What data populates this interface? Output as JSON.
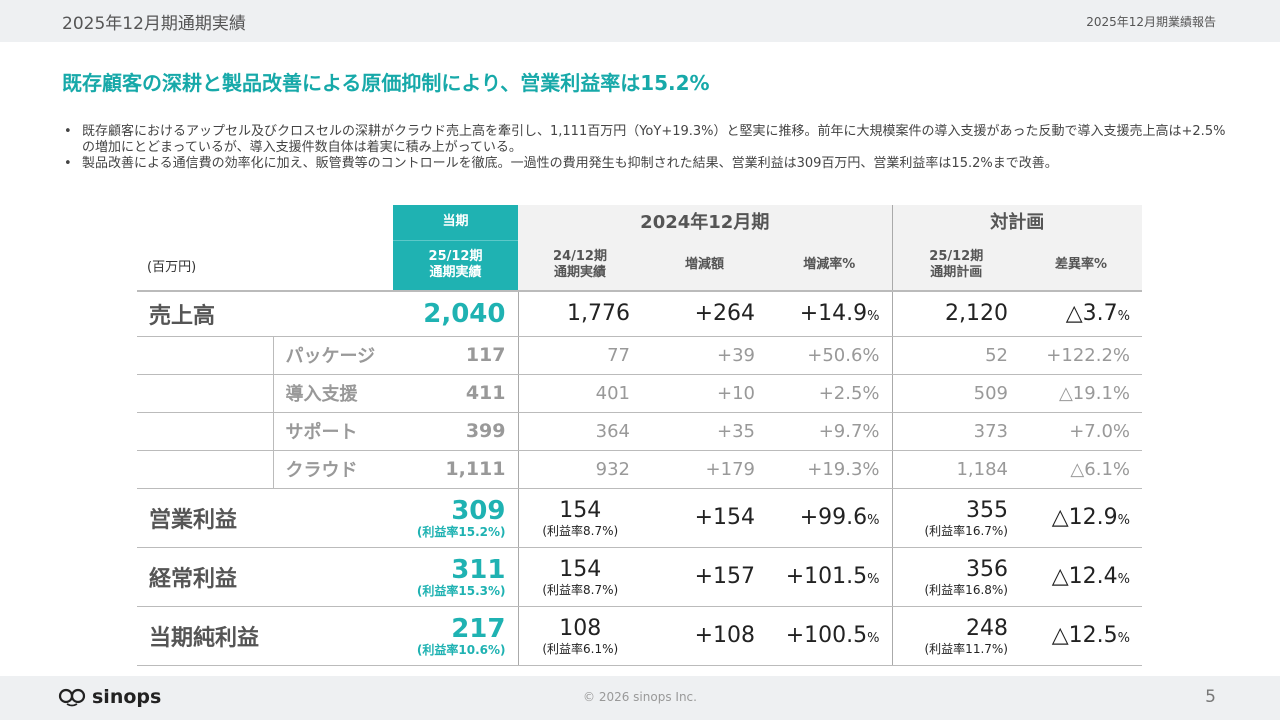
{
  "header": {
    "title": "2025年12月期通期実績",
    "report": "2025年12月期業績報告"
  },
  "headline": "既存顧客の深耕と製品改善による原価抑制により、営業利益率は15.2%",
  "bullets": [
    "既存顧客におけるアップセル及びクロスセルの深耕がクラウド売上高を牽引し、1,111百万円（YoY+19.3%）と堅実に推移。前年に大規模案件の導入支援があった反動で導入支援売上高は+2.5%の増加にとどまっているが、導入支援件数自体は着実に積み上がっている。",
    "製品改善による通信費の効率化に加え、販管費等のコントロールを徹底。一過性の費用発生も抑制された結果、営業利益は309百万円、営業利益率は15.2%まで改善。"
  ],
  "table": {
    "unit": "(百万円)",
    "group_current": "当期",
    "group_prev": "2024年12月期",
    "group_plan": "対計画",
    "cols": {
      "cur1": "25/12期",
      "cur2": "通期実績",
      "prev1": "24/12期",
      "prev2": "通期実績",
      "diff": "増減額",
      "rate": "増減率%",
      "plan1": "25/12期",
      "plan2": "通期計画",
      "var": "差異率%"
    },
    "sales": {
      "label": "売上高",
      "cur": "2,040",
      "prev": "1,776",
      "diff": "+264",
      "rate": "+14.9",
      "plan": "2,120",
      "var": "△3.7"
    },
    "subs": [
      {
        "label": "パッケージ",
        "cur": "117",
        "prev": "77",
        "diff": "+39",
        "rate": "+50.6%",
        "plan": "52",
        "var": "+122.2%"
      },
      {
        "label": "導入支援",
        "cur": "411",
        "prev": "401",
        "diff": "+10",
        "rate": "+2.5%",
        "plan": "509",
        "var": "△19.1%"
      },
      {
        "label": "サポート",
        "cur": "399",
        "prev": "364",
        "diff": "+35",
        "rate": "+9.7%",
        "plan": "373",
        "var": "+7.0%"
      },
      {
        "label": "クラウド",
        "cur": "1,111",
        "prev": "932",
        "diff": "+179",
        "rate": "+19.3%",
        "plan": "1,184",
        "var": "△6.1%"
      }
    ],
    "profits": [
      {
        "label": "営業利益",
        "cur": "309",
        "cur_m": "(利益率15.2%)",
        "prev": "154",
        "prev_m": "(利益率8.7%)",
        "diff": "+154",
        "rate": "+99.6",
        "plan": "355",
        "plan_m": "(利益率16.7%)",
        "var": "△12.9"
      },
      {
        "label": "経常利益",
        "cur": "311",
        "cur_m": "(利益率15.3%)",
        "prev": "154",
        "prev_m": "(利益率8.7%)",
        "diff": "+157",
        "rate": "+101.5",
        "plan": "356",
        "plan_m": "(利益率16.8%)",
        "var": "△12.4"
      },
      {
        "label": "当期純利益",
        "cur": "217",
        "cur_m": "(利益率10.6%)",
        "prev": "108",
        "prev_m": "(利益率6.1%)",
        "diff": "+108",
        "rate": "+100.5",
        "plan": "248",
        "plan_m": "(利益率11.7%)",
        "var": "△12.5"
      }
    ],
    "pct": "%"
  },
  "footer": {
    "logo": "sinops",
    "copyright": "© 2026 sinops Inc.",
    "page": "5"
  },
  "colors": {
    "accent": "#1fb2b2",
    "headline": "#17a9a9"
  }
}
